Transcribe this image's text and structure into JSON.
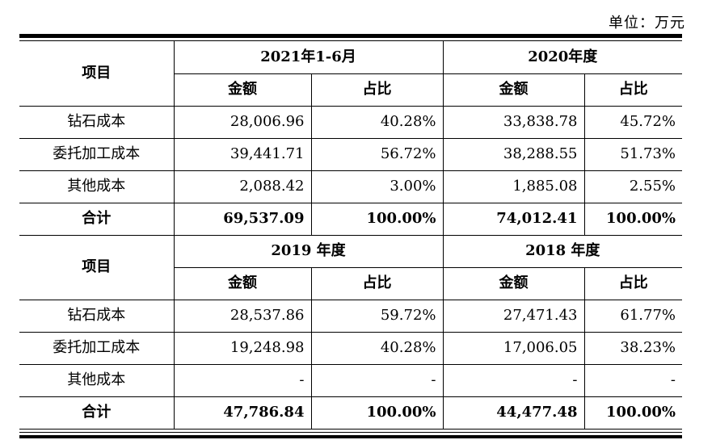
{
  "unit": "单位：万元",
  "tables": [
    {
      "header": {
        "item": "项目",
        "period1": "2021年1-6月",
        "period2": "2020年度",
        "amount": "金额",
        "ratio": "占比"
      },
      "rows": [
        {
          "label": "钻石成本",
          "v1": "28,006.96",
          "p1": "40.28%",
          "v2": "33,838.78",
          "p2": "45.72%"
        },
        {
          "label": "委托加工成本",
          "v1": "39,441.71",
          "p1": "56.72%",
          "v2": "38,288.55",
          "p2": "51.73%"
        },
        {
          "label": "其他成本",
          "v1": "2,088.42",
          "p1": "3.00%",
          "v2": "1,885.08",
          "p2": "2.55%"
        }
      ],
      "total": {
        "label": "合计",
        "v1": "69,537.09",
        "p1": "100.00%",
        "v2": "74,012.41",
        "p2": "100.00%"
      }
    },
    {
      "header": {
        "item": "项目",
        "period1": "2019 年度",
        "period2": "2018 年度",
        "amount": "金额",
        "ratio": "占比"
      },
      "rows": [
        {
          "label": "钻石成本",
          "v1": "28,537.86",
          "p1": "59.72%",
          "v2": "27,471.43",
          "p2": "61.77%"
        },
        {
          "label": "委托加工成本",
          "v1": "19,248.98",
          "p1": "40.28%",
          "v2": "17,006.05",
          "p2": "38.23%"
        },
        {
          "label": "其他成本",
          "v1": "-",
          "p1": "-",
          "v2": "-",
          "p2": "-"
        }
      ],
      "total": {
        "label": "合计",
        "v1": "47,786.84",
        "p1": "100.00%",
        "v2": "44,477.48",
        "p2": "100.00%"
      }
    }
  ]
}
